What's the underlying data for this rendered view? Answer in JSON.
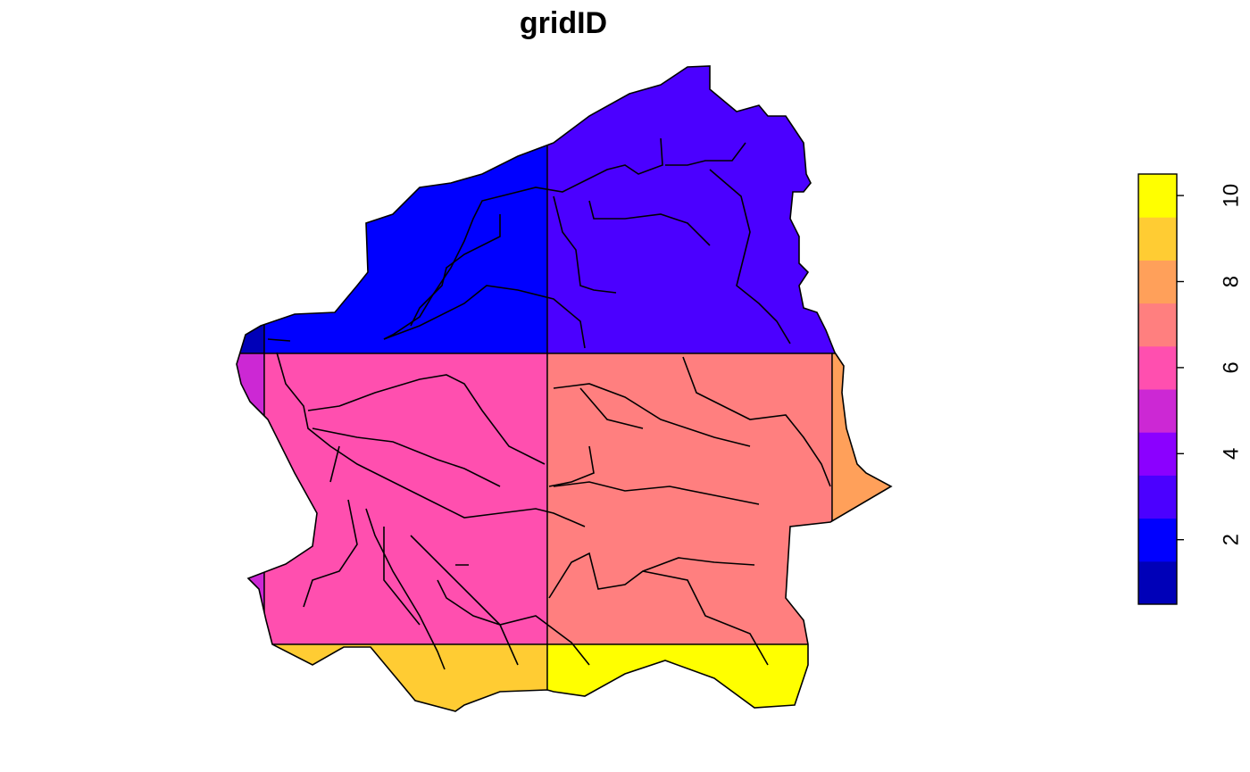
{
  "title": "gridID",
  "map": {
    "values": [
      1,
      2,
      3,
      5,
      6,
      7,
      8,
      9,
      10
    ]
  },
  "legend": {
    "range": [
      0.5,
      10.5
    ],
    "ticks": [
      2,
      4,
      6,
      8,
      10
    ],
    "colors": [
      "#0000B8",
      "#0000FF",
      "#4B00FF",
      "#8B00FF",
      "#CC28D4",
      "#FF4FAF",
      "#FF7F7F",
      "#FFA05A",
      "#FFCC33",
      "#FFFF00"
    ]
  }
}
